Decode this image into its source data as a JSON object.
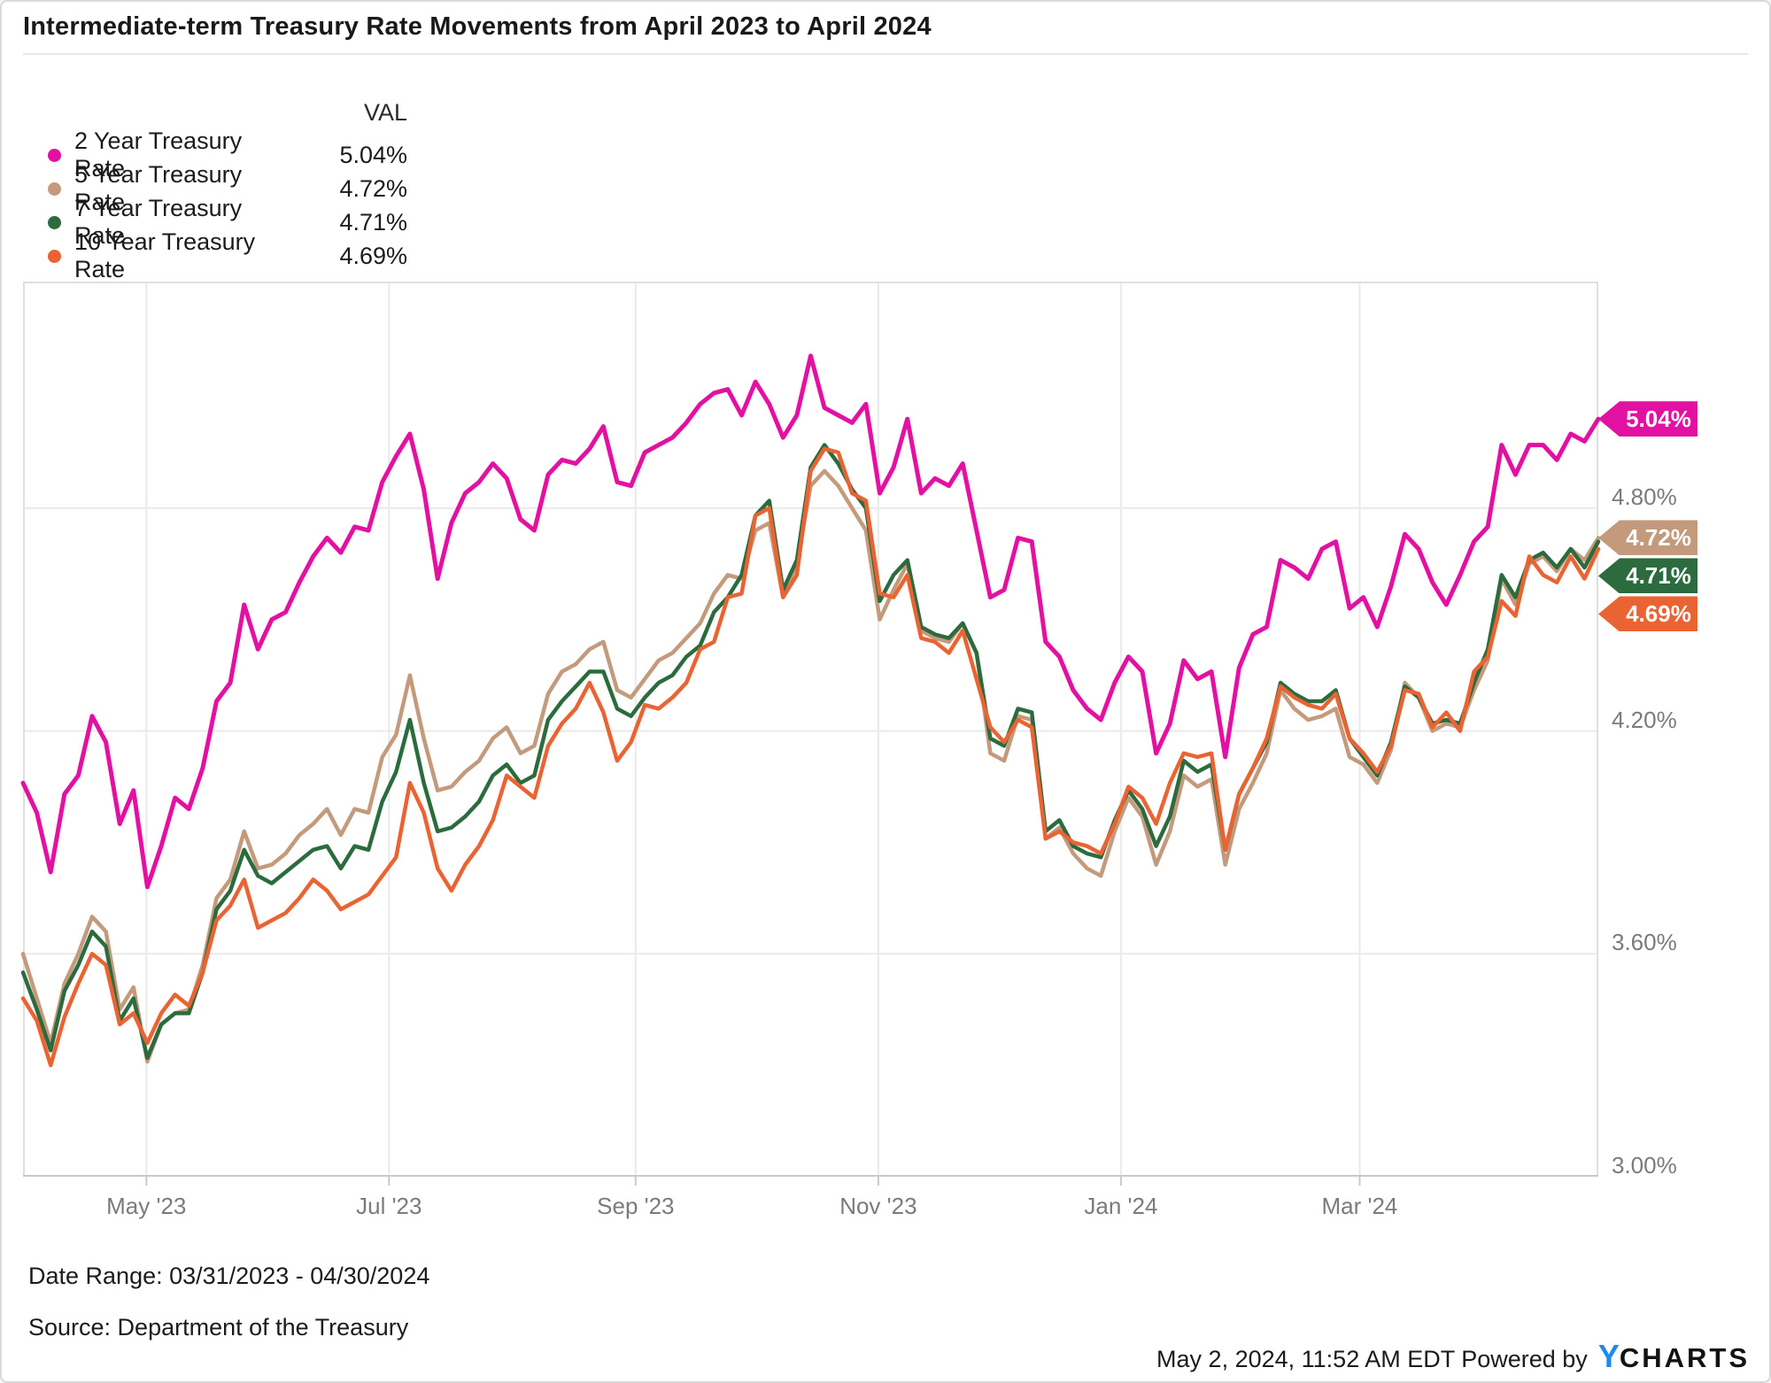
{
  "title": "Intermediate-term Treasury Rate Movements from April 2023 to April 2024",
  "colors": {
    "series_2yr": "#e211a2",
    "series_5yr": "#c49a7c",
    "series_7yr": "#2c6b3e",
    "series_10yr": "#e96333",
    "grid": "#eaeaea",
    "plot_border": "#dfdfdf",
    "axis_bottom": "#c9c9c9",
    "tick_text": "#7b7b7b",
    "logo_blue": "#1e8bea"
  },
  "legend": {
    "header": "VAL",
    "items": [
      {
        "label": "2 Year Treasury Rate",
        "value": "5.04%",
        "color": "#e211a2"
      },
      {
        "label": "5 Year Treasury Rate",
        "value": "4.72%",
        "color": "#c49a7c"
      },
      {
        "label": "7 Year Treasury Rate",
        "value": "4.71%",
        "color": "#2c6b3e"
      },
      {
        "label": "10 Year Treasury Rate",
        "value": "4.69%",
        "color": "#e96333"
      }
    ]
  },
  "flags": [
    {
      "label": "5.04%",
      "value": 5.04,
      "color": "#e211a2"
    },
    {
      "label": "4.72%",
      "value": 4.72,
      "color": "#c49a7c"
    },
    {
      "label": "4.71%",
      "value": 4.71,
      "color": "#2c6b3e"
    },
    {
      "label": "4.69%",
      "value": 4.69,
      "color": "#e96333"
    }
  ],
  "footer": {
    "date_range": "Date Range: 03/31/2023 - 04/30/2024",
    "source": "Source: Department of the Treasury",
    "timestamp": "May 2, 2024, 11:52 AM EDT Powered by",
    "brand_y": "Y",
    "brand_rest": "CHARTS"
  },
  "chart_data": {
    "type": "line",
    "title": "Intermediate-term Treasury Rate Movements from April 2023 to April 2024",
    "x_start_date": "03/31/2023",
    "x_end_date": "04/30/2024",
    "x_total_days": 396,
    "x_ticks": [
      {
        "label": "May '23",
        "day": 31
      },
      {
        "label": "Jul '23",
        "day": 92
      },
      {
        "label": "Sep '23",
        "day": 154
      },
      {
        "label": "Nov '23",
        "day": 215
      },
      {
        "label": "Jan '24",
        "day": 276
      },
      {
        "label": "Mar '24",
        "day": 336
      }
    ],
    "y_ticks": [
      {
        "label": "4.80%",
        "value": 4.8
      },
      {
        "label": "4.20%",
        "value": 4.2
      },
      {
        "label": "3.60%",
        "value": 3.6
      },
      {
        "label": "3.00%",
        "value": 3.0
      }
    ],
    "ylim": [
      3.0,
      5.41
    ],
    "grid": true,
    "legend_position": "top-left",
    "ylabel": "",
    "xlabel": "",
    "series": [
      {
        "name": "2 Year Treasury Rate",
        "color": "#e211a2",
        "last_value_label": "5.04%",
        "values": [
          4.06,
          3.98,
          3.82,
          4.03,
          4.08,
          4.24,
          4.17,
          3.95,
          4.04,
          3.78,
          3.89,
          4.02,
          3.99,
          4.1,
          4.28,
          4.33,
          4.54,
          4.42,
          4.5,
          4.52,
          4.6,
          4.67,
          4.72,
          4.68,
          4.75,
          4.74,
          4.87,
          4.94,
          5.0,
          4.85,
          4.61,
          4.76,
          4.84,
          4.87,
          4.92,
          4.88,
          4.77,
          4.74,
          4.89,
          4.93,
          4.92,
          4.96,
          5.02,
          4.87,
          4.86,
          4.95,
          4.97,
          4.99,
          5.03,
          5.08,
          5.11,
          5.12,
          5.05,
          5.14,
          5.08,
          4.99,
          5.05,
          5.21,
          5.07,
          5.05,
          5.03,
          5.08,
          4.84,
          4.91,
          5.04,
          4.84,
          4.88,
          4.86,
          4.92,
          4.74,
          4.56,
          4.58,
          4.72,
          4.71,
          4.44,
          4.4,
          4.31,
          4.26,
          4.23,
          4.33,
          4.4,
          4.36,
          4.14,
          4.22,
          4.39,
          4.34,
          4.36,
          4.13,
          4.37,
          4.46,
          4.48,
          4.66,
          4.64,
          4.61,
          4.69,
          4.71,
          4.53,
          4.56,
          4.48,
          4.59,
          4.73,
          4.69,
          4.6,
          4.54,
          4.62,
          4.71,
          4.75,
          4.97,
          4.89,
          4.97,
          4.97,
          4.93,
          5.0,
          4.98,
          5.04
        ]
      },
      {
        "name": "5 Year Treasury Rate",
        "color": "#c49a7c",
        "last_value_label": "4.72%",
        "values": [
          3.6,
          3.48,
          3.36,
          3.52,
          3.6,
          3.7,
          3.66,
          3.45,
          3.51,
          3.31,
          3.41,
          3.44,
          3.45,
          3.57,
          3.75,
          3.8,
          3.93,
          3.83,
          3.84,
          3.87,
          3.92,
          3.95,
          3.99,
          3.92,
          3.99,
          3.98,
          4.13,
          4.19,
          4.35,
          4.18,
          4.04,
          4.05,
          4.09,
          4.12,
          4.18,
          4.21,
          4.14,
          4.16,
          4.3,
          4.36,
          4.38,
          4.42,
          4.44,
          4.31,
          4.29,
          4.34,
          4.39,
          4.41,
          4.45,
          4.49,
          4.57,
          4.62,
          4.61,
          4.74,
          4.76,
          4.56,
          4.65,
          4.86,
          4.9,
          4.86,
          4.8,
          4.74,
          4.5,
          4.58,
          4.65,
          4.47,
          4.45,
          4.44,
          4.49,
          4.41,
          4.14,
          4.12,
          4.24,
          4.23,
          3.91,
          3.94,
          3.87,
          3.83,
          3.81,
          3.93,
          4.02,
          3.97,
          3.84,
          3.93,
          4.08,
          4.05,
          4.07,
          3.84,
          3.99,
          4.06,
          4.14,
          4.31,
          4.26,
          4.23,
          4.24,
          4.26,
          4.13,
          4.11,
          4.06,
          4.15,
          4.33,
          4.29,
          4.2,
          4.22,
          4.21,
          4.31,
          4.39,
          4.61,
          4.54,
          4.65,
          4.67,
          4.63,
          4.69,
          4.66,
          4.72
        ]
      },
      {
        "name": "7 Year Treasury Rate",
        "color": "#2c6b3e",
        "last_value_label": "4.71%",
        "values": [
          3.55,
          3.45,
          3.34,
          3.5,
          3.57,
          3.66,
          3.62,
          3.42,
          3.48,
          3.32,
          3.41,
          3.44,
          3.44,
          3.55,
          3.72,
          3.77,
          3.88,
          3.81,
          3.79,
          3.82,
          3.85,
          3.88,
          3.89,
          3.83,
          3.89,
          3.88,
          4.01,
          4.09,
          4.23,
          4.06,
          3.93,
          3.94,
          3.97,
          4.01,
          4.08,
          4.11,
          4.06,
          4.08,
          4.23,
          4.28,
          4.32,
          4.36,
          4.36,
          4.26,
          4.24,
          4.29,
          4.33,
          4.35,
          4.4,
          4.43,
          4.52,
          4.56,
          4.62,
          4.78,
          4.82,
          4.58,
          4.66,
          4.91,
          4.97,
          4.92,
          4.85,
          4.8,
          4.55,
          4.62,
          4.66,
          4.48,
          4.46,
          4.45,
          4.49,
          4.41,
          4.18,
          4.16,
          4.26,
          4.25,
          3.93,
          3.96,
          3.89,
          3.87,
          3.86,
          3.96,
          4.04,
          3.99,
          3.89,
          3.97,
          4.12,
          4.09,
          4.11,
          3.88,
          4.03,
          4.1,
          4.17,
          4.33,
          4.3,
          4.28,
          4.28,
          4.31,
          4.18,
          4.13,
          4.08,
          4.17,
          4.32,
          4.29,
          4.22,
          4.23,
          4.22,
          4.33,
          4.42,
          4.62,
          4.56,
          4.66,
          4.68,
          4.64,
          4.69,
          4.64,
          4.71
        ]
      },
      {
        "name": "10 Year Treasury Rate",
        "color": "#e96333",
        "last_value_label": "4.69%",
        "values": [
          3.48,
          3.42,
          3.3,
          3.43,
          3.52,
          3.6,
          3.57,
          3.41,
          3.44,
          3.36,
          3.44,
          3.49,
          3.46,
          3.55,
          3.69,
          3.73,
          3.8,
          3.67,
          3.69,
          3.71,
          3.75,
          3.8,
          3.77,
          3.72,
          3.74,
          3.76,
          3.81,
          3.86,
          4.06,
          3.98,
          3.83,
          3.77,
          3.84,
          3.89,
          3.96,
          4.08,
          4.05,
          4.02,
          4.16,
          4.22,
          4.26,
          4.33,
          4.25,
          4.12,
          4.17,
          4.27,
          4.26,
          4.29,
          4.33,
          4.42,
          4.44,
          4.56,
          4.57,
          4.78,
          4.8,
          4.56,
          4.62,
          4.9,
          4.96,
          4.95,
          4.84,
          4.82,
          4.57,
          4.56,
          4.62,
          4.45,
          4.44,
          4.41,
          4.47,
          4.34,
          4.21,
          4.17,
          4.23,
          4.21,
          3.91,
          3.93,
          3.9,
          3.89,
          3.87,
          3.95,
          4.05,
          4.02,
          3.95,
          4.06,
          4.14,
          4.13,
          4.14,
          3.88,
          4.03,
          4.1,
          4.18,
          4.32,
          4.29,
          4.27,
          4.26,
          4.3,
          4.18,
          4.14,
          4.09,
          4.16,
          4.31,
          4.3,
          4.21,
          4.25,
          4.2,
          4.36,
          4.4,
          4.55,
          4.51,
          4.67,
          4.62,
          4.6,
          4.67,
          4.61,
          4.69
        ]
      }
    ]
  }
}
